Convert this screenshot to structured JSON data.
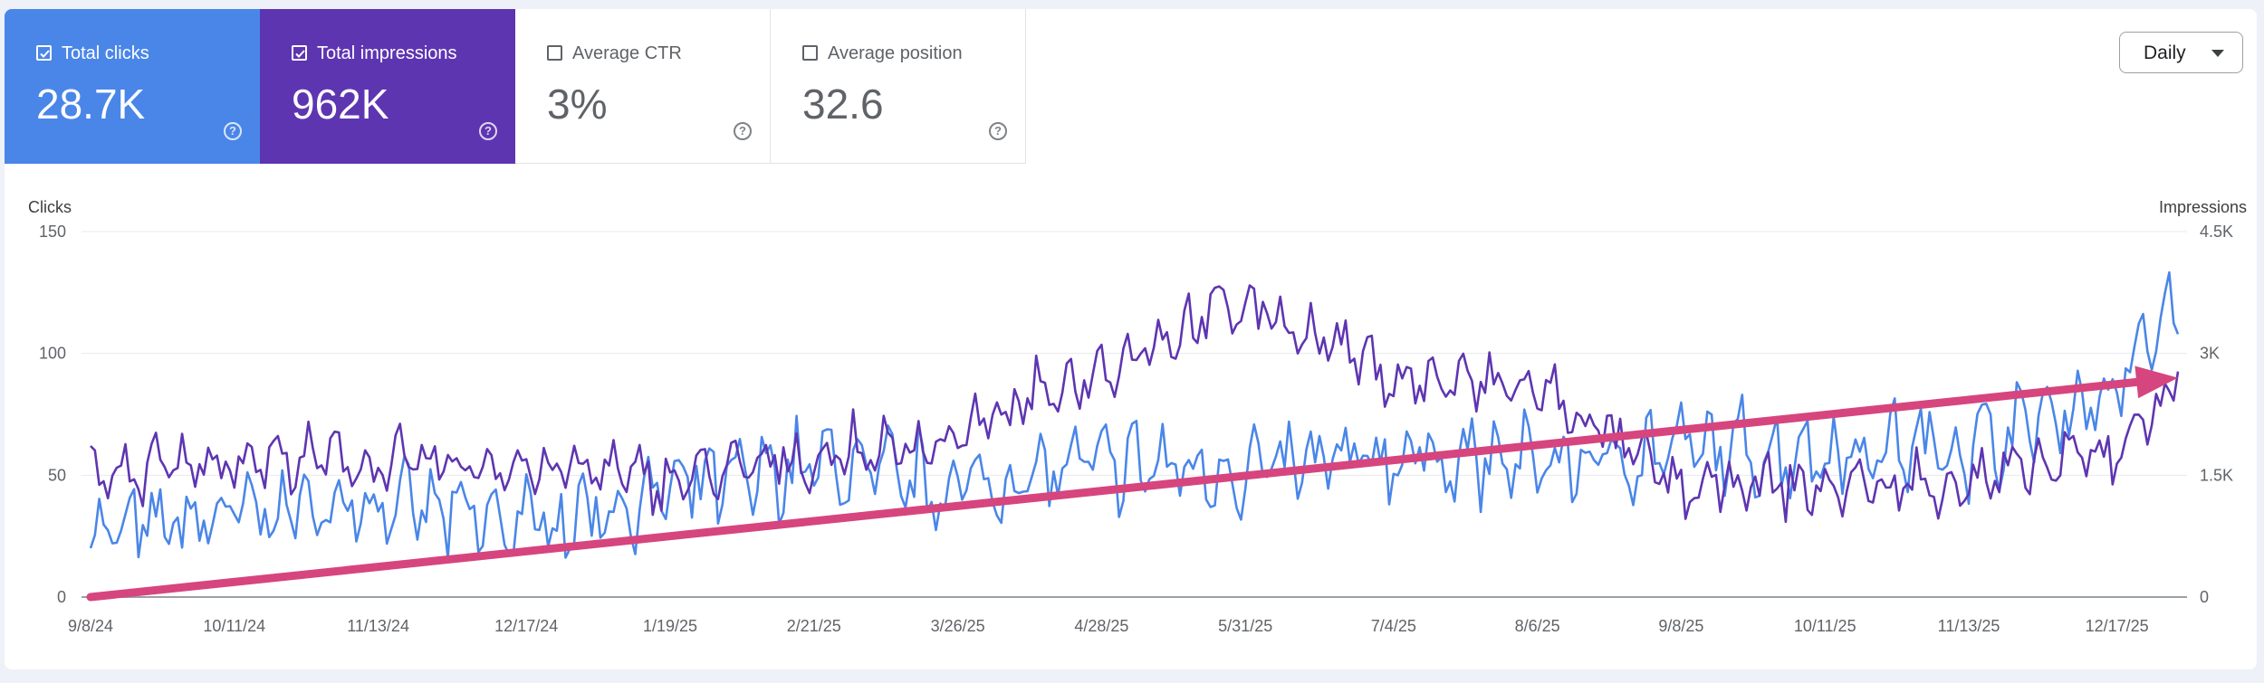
{
  "metrics": [
    {
      "label": "Total clicks",
      "value": "28.7K",
      "checked": true,
      "color": "#4a86e8"
    },
    {
      "label": "Total impressions",
      "value": "962K",
      "checked": true,
      "color": "#5e35b1"
    },
    {
      "label": "Average CTR",
      "value": "3%",
      "checked": false
    },
    {
      "label": "Average position",
      "value": "32.6",
      "checked": false
    }
  ],
  "period_select": {
    "value": "Daily"
  },
  "colors": {
    "clicks": "#4a86e8",
    "impressions": "#5e35b1",
    "trend_arrow": "#d6457e",
    "grid": "#e8eaed"
  },
  "chart_data": {
    "type": "line",
    "title": "",
    "xlabel": "",
    "ylabel": "Clicks",
    "ylabel_right": "Impressions",
    "ylim": [
      0,
      150
    ],
    "ylim_right": [
      0,
      4500
    ],
    "yticks": [
      "0",
      "50",
      "100",
      "150"
    ],
    "yticks_right": [
      "0",
      "1.5K",
      "3K",
      "4.5K"
    ],
    "grid": true,
    "x_range": [
      "2024-09-08",
      "2025-12-31"
    ],
    "xticks": [
      "9/8/24",
      "10/11/24",
      "11/13/24",
      "12/17/24",
      "1/19/25",
      "2/21/25",
      "3/26/25",
      "4/28/25",
      "5/31/25",
      "7/4/25",
      "8/6/25",
      "9/8/25",
      "10/11/25",
      "11/13/25",
      "12/17/25"
    ],
    "series": [
      {
        "name": "Clicks",
        "axis": "left",
        "x": [
          "2024-09-08",
          "2024-10-11",
          "2024-11-13",
          "2024-12-17",
          "2025-01-19",
          "2025-02-21",
          "2025-03-26",
          "2025-04-28",
          "2025-05-31",
          "2025-07-04",
          "2025-08-06",
          "2025-09-08",
          "2025-10-11",
          "2025-11-13",
          "2025-12-17",
          "2025-12-31"
        ],
        "y": [
          25,
          35,
          38,
          30,
          42,
          55,
          45,
          55,
          52,
          58,
          55,
          60,
          60,
          62,
          85,
          125
        ]
      },
      {
        "name": "Impressions",
        "axis": "right",
        "x": [
          "2024-09-08",
          "2024-10-11",
          "2024-11-13",
          "2024-12-17",
          "2025-01-19",
          "2025-02-21",
          "2025-03-26",
          "2025-04-28",
          "2025-05-31",
          "2025-07-04",
          "2025-08-06",
          "2025-09-08",
          "2025-10-11",
          "2025-11-13",
          "2025-12-17",
          "2025-12-31"
        ],
        "y": [
          1450,
          1700,
          1650,
          1600,
          1450,
          1700,
          1950,
          2850,
          3650,
          2700,
          2550,
          1350,
          1350,
          1400,
          1800,
          2700
        ]
      }
    ],
    "annotations": [
      {
        "type": "arrow",
        "from": {
          "x": "2024-09-08",
          "y": 0
        },
        "to": {
          "x": "2025-12-31",
          "y": 90
        }
      }
    ]
  }
}
